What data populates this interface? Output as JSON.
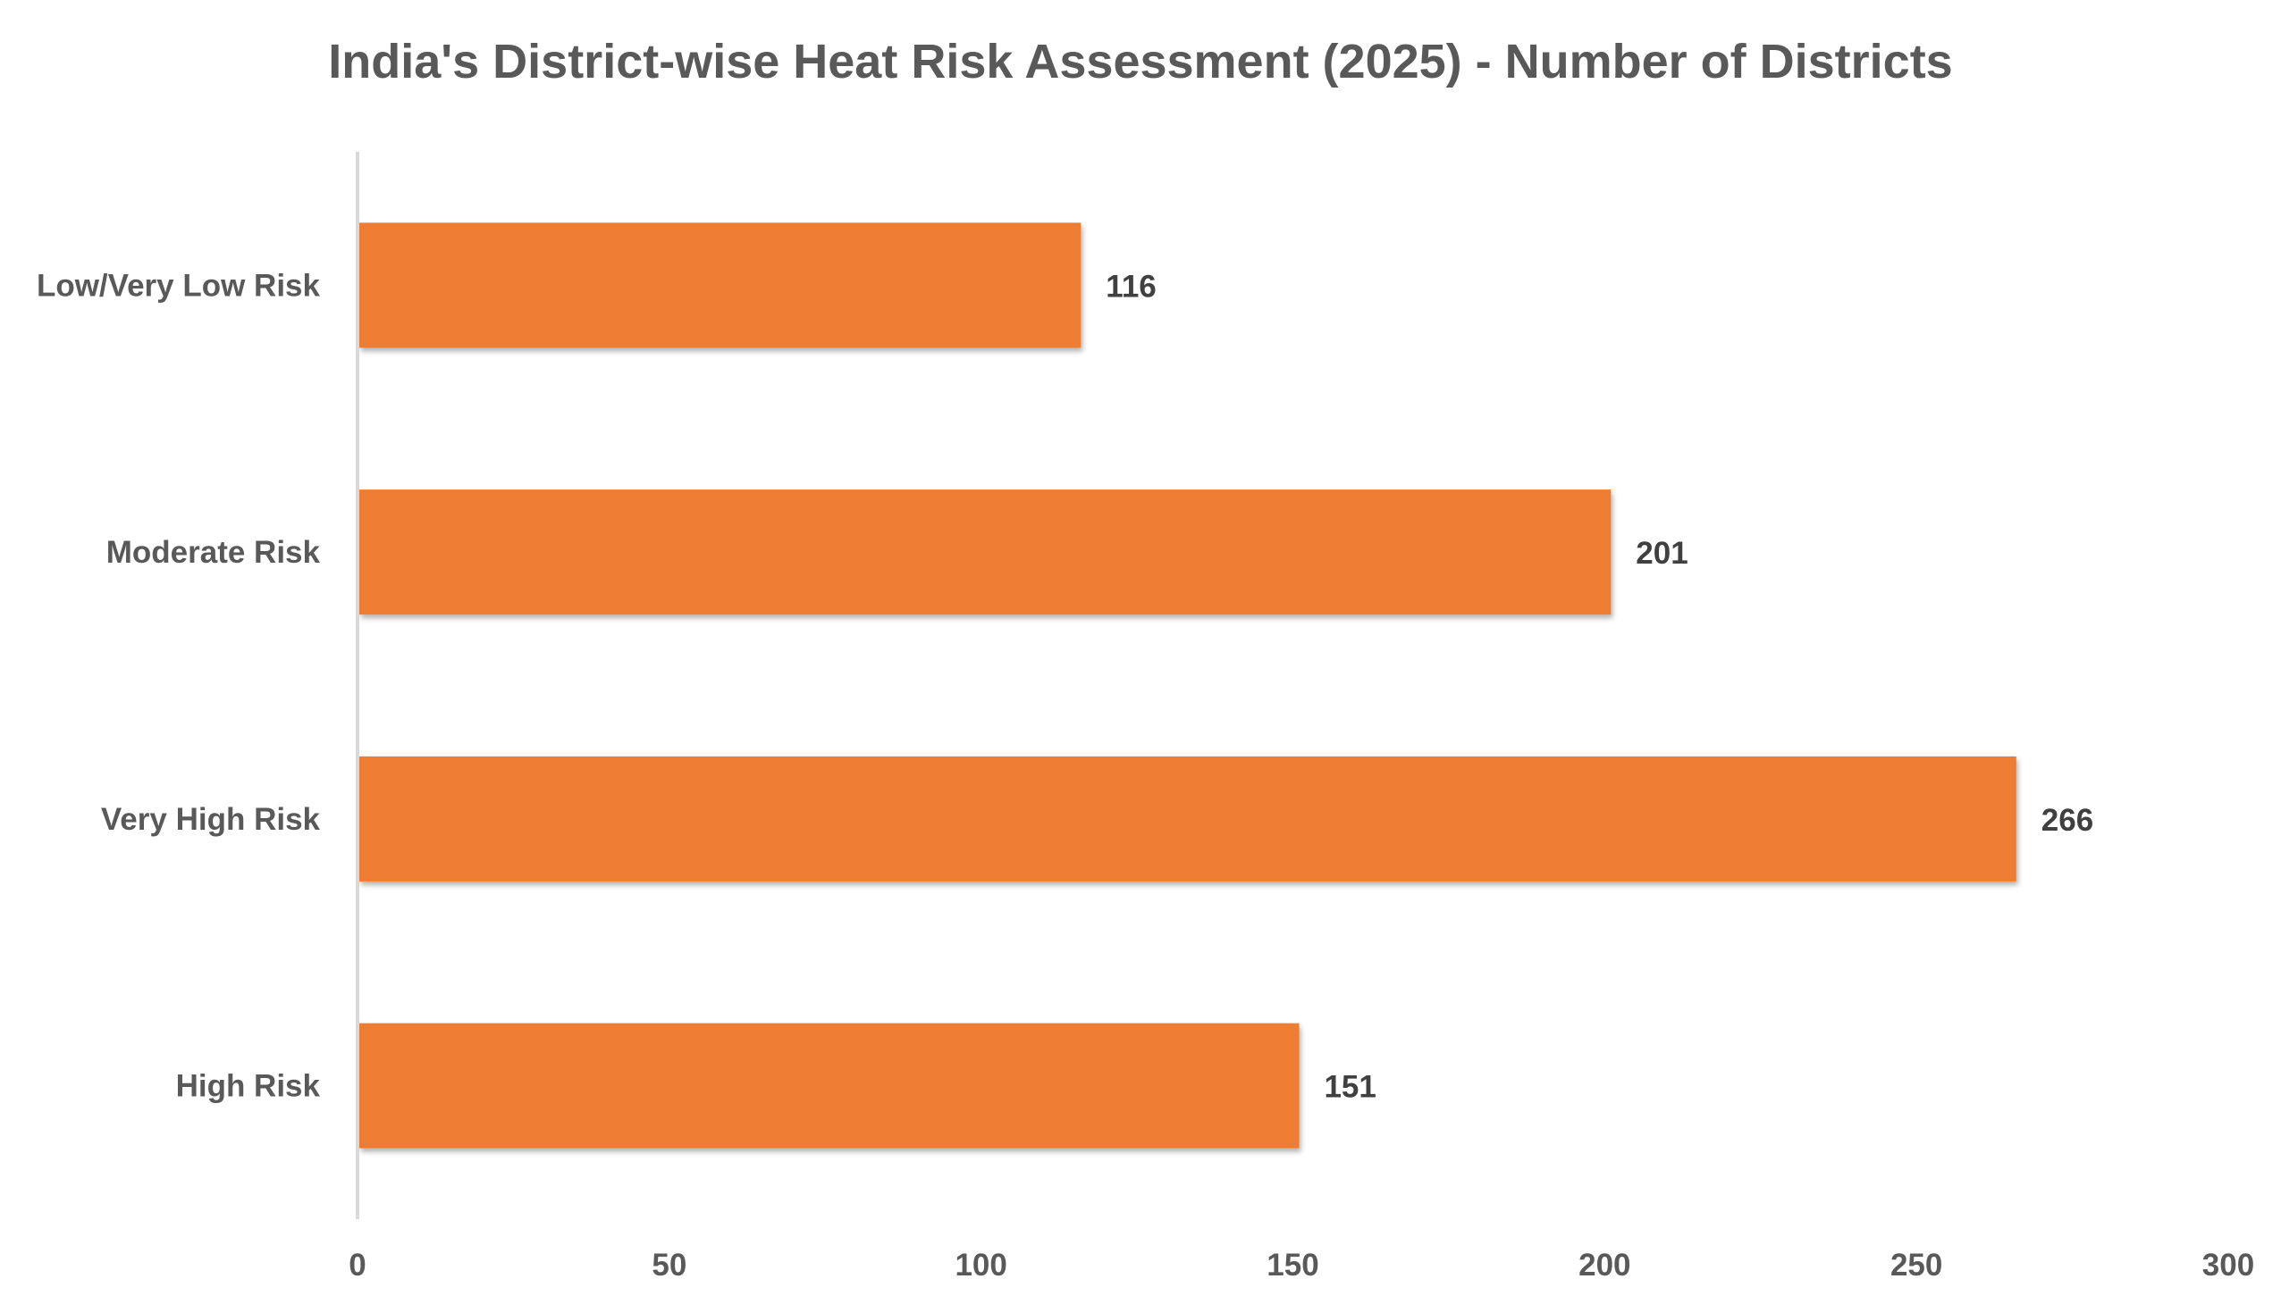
{
  "chart_data": {
    "type": "bar",
    "orientation": "horizontal",
    "title": "India's District-wise Heat Risk Assessment (2025) - Number of Districts",
    "categories": [
      "Low/Very Low Risk",
      "Moderate Risk",
      "Very High Risk",
      "High Risk"
    ],
    "values": [
      116,
      201,
      266,
      151
    ],
    "data_labels": [
      "116",
      "201",
      "266",
      "151"
    ],
    "xlim": [
      0,
      300
    ],
    "x_ticks": [
      0,
      50,
      100,
      150,
      200,
      250,
      300
    ],
    "x_tick_labels": [
      "0",
      "50",
      "100",
      "150",
      "200",
      "250",
      "300"
    ],
    "xlabel": "",
    "ylabel": "",
    "grid": false,
    "legend": "none",
    "bar_color": "#ED7D31",
    "axis_color": "#D9D9D9"
  }
}
